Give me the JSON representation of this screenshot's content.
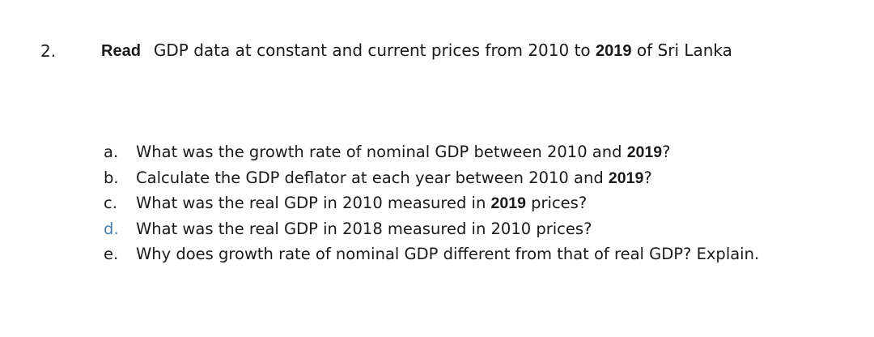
{
  "question": {
    "number": "2.",
    "heading": {
      "read_word": "Read",
      "text_before_year": "GDP data at constant and current prices from 2010 to",
      "year": "2019",
      "text_after_year": "of Sri Lanka"
    }
  },
  "subquestions": [
    {
      "marker": "a.",
      "text_before": "What was the growth rate of nominal GDP between 2010 and",
      "year": "2019",
      "text_after": "?"
    },
    {
      "marker": "b.",
      "text_before": "Calculate the GDP deflator at each year between 2010 and",
      "year": "2019",
      "text_after": "?"
    },
    {
      "marker": "c.",
      "text_before": "What was the real GDP in 2010 measured in",
      "year": "2019",
      "text_after": "prices?"
    },
    {
      "marker": "d.",
      "text": "What was the real GDP in 2018 measured in 2010 prices?"
    },
    {
      "marker": "e.",
      "text": "Why does growth rate of nominal GDP different from that of real GDP? Explain."
    }
  ],
  "colors": {
    "text": "#1a1a1a",
    "marker_d": "#4a7eaa",
    "background": "#ffffff"
  }
}
